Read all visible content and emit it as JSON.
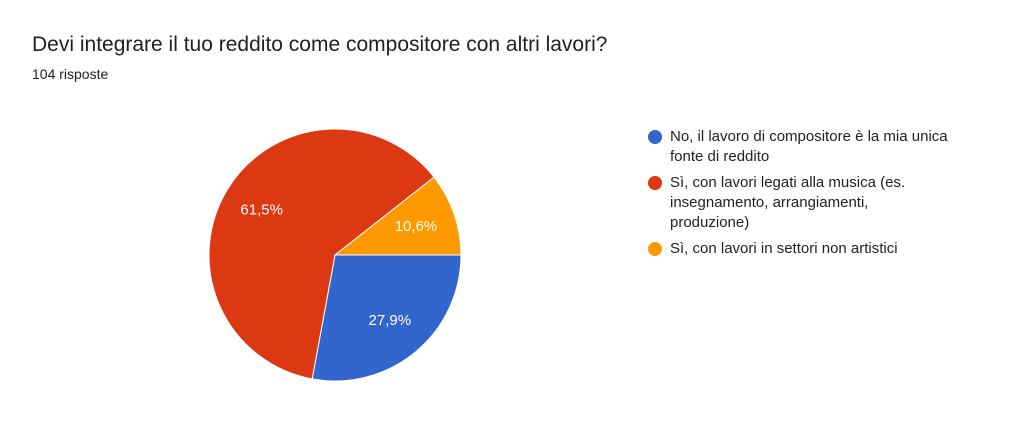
{
  "chart_data": {
    "type": "pie",
    "title": "Devi integrare il tuo reddito come compositore con altri lavori?",
    "subtitle": "104 risposte",
    "categories": [
      "No, il lavoro di compositore è la mia unica fonte di reddito",
      "Sì, con lavori legati alla musica (es. insegnamento, arrangiamenti, produzione)",
      "Sì, con lavori in settori non artistici"
    ],
    "values": [
      27.9,
      61.5,
      10.6
    ],
    "value_labels": [
      "27,9%",
      "61,5%",
      "10,6%"
    ],
    "colors": [
      "#3366cc",
      "#dc3912",
      "#ff9900"
    ],
    "legend": "right"
  }
}
